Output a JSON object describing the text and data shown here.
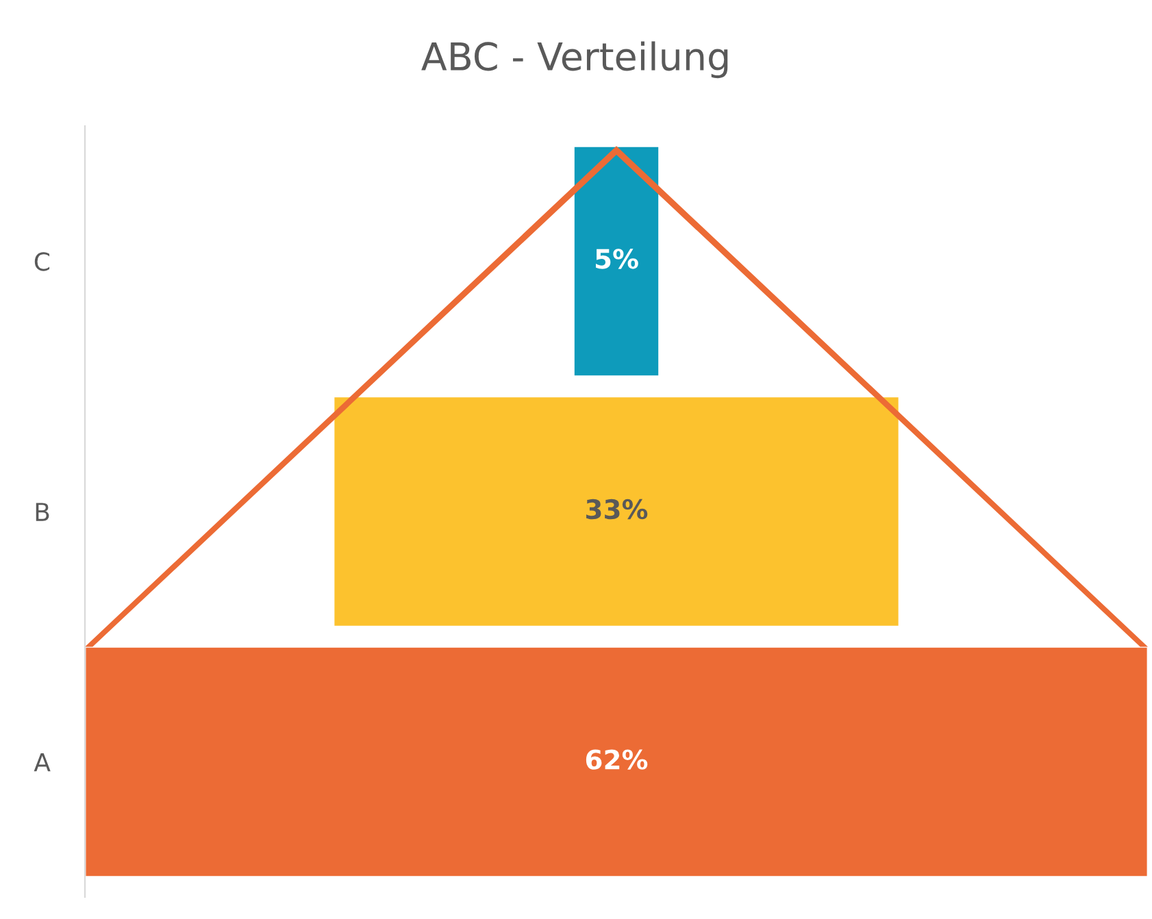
{
  "chart_data": {
    "type": "other",
    "title": "ABC - Verteilung",
    "categories": [
      "C",
      "B",
      "A"
    ],
    "values": [
      5,
      33,
      62
    ],
    "value_labels": [
      "5%",
      "33%",
      "62%"
    ],
    "colors": [
      "#0e9bbb",
      "#fcc22e",
      "#ec6b35"
    ]
  }
}
